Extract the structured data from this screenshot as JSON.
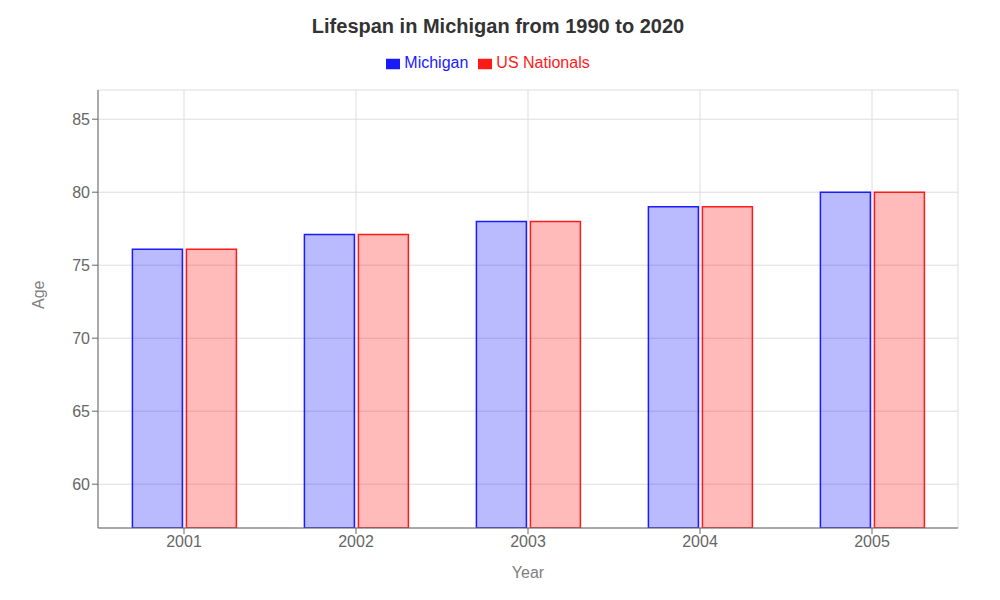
{
  "chart_data": {
    "type": "bar",
    "title": "Lifespan in Michigan from 1990 to 2020",
    "xlabel": "Year",
    "ylabel": "Age",
    "categories": [
      "2001",
      "2002",
      "2003",
      "2004",
      "2005"
    ],
    "series": [
      {
        "name": "Michigan",
        "color": "#1a1aff",
        "values": [
          76.1,
          77.1,
          78.0,
          79.0,
          80.0
        ]
      },
      {
        "name": "US Nationals",
        "color": "#ff1a1a",
        "values": [
          76.1,
          77.1,
          78.0,
          79.0,
          80.0
        ]
      }
    ],
    "ylim": [
      57,
      87
    ],
    "yticks": [
      60,
      65,
      70,
      75,
      80,
      85
    ],
    "grid": true,
    "legend": "top"
  }
}
